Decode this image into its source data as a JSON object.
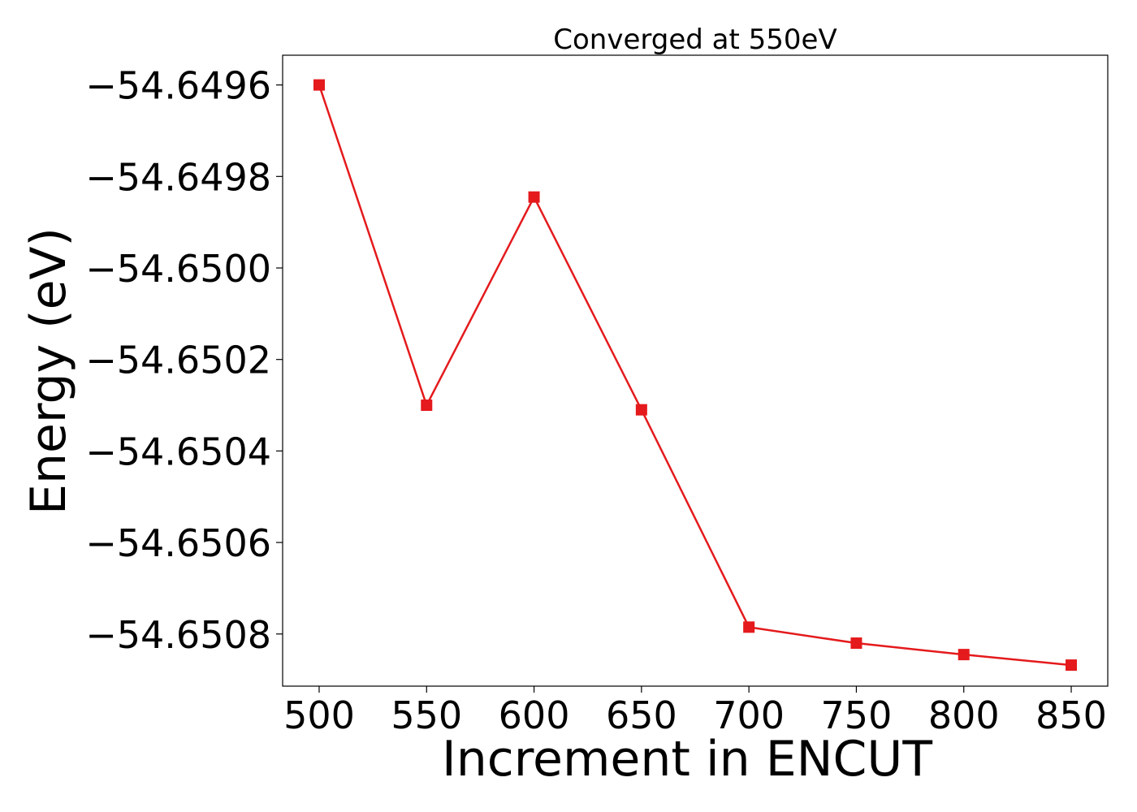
{
  "chart_data": {
    "type": "line",
    "title": "Converged at 550eV",
    "xlabel": "Increment in ENCUT",
    "ylabel": "Energy (eV)",
    "x": [
      500,
      550,
      600,
      650,
      700,
      750,
      800,
      850
    ],
    "series": [
      {
        "values": [
          -54.6496,
          -54.6503,
          -54.649845,
          -54.65031,
          -54.650785,
          -54.65082,
          -54.650845,
          -54.650868
        ],
        "color": "#e41a1c",
        "marker": "square"
      }
    ],
    "xticks": [
      500,
      550,
      600,
      650,
      700,
      750,
      800,
      850
    ],
    "xtick_labels": [
      "500",
      "550",
      "600",
      "650",
      "700",
      "750",
      "800",
      "850"
    ],
    "yticks": [
      -54.6496,
      -54.6498,
      -54.65,
      -54.6502,
      -54.6504,
      -54.6506,
      -54.6508
    ],
    "ytick_labels": [
      "−54.6496",
      "−54.6498",
      "−54.6500",
      "−54.6502",
      "−54.6504",
      "−54.6506",
      "−54.6508"
    ],
    "xlim": [
      483,
      867
    ],
    "ylim": [
      -54.650914,
      -54.649535
    ],
    "grid": false,
    "legend": "none"
  }
}
